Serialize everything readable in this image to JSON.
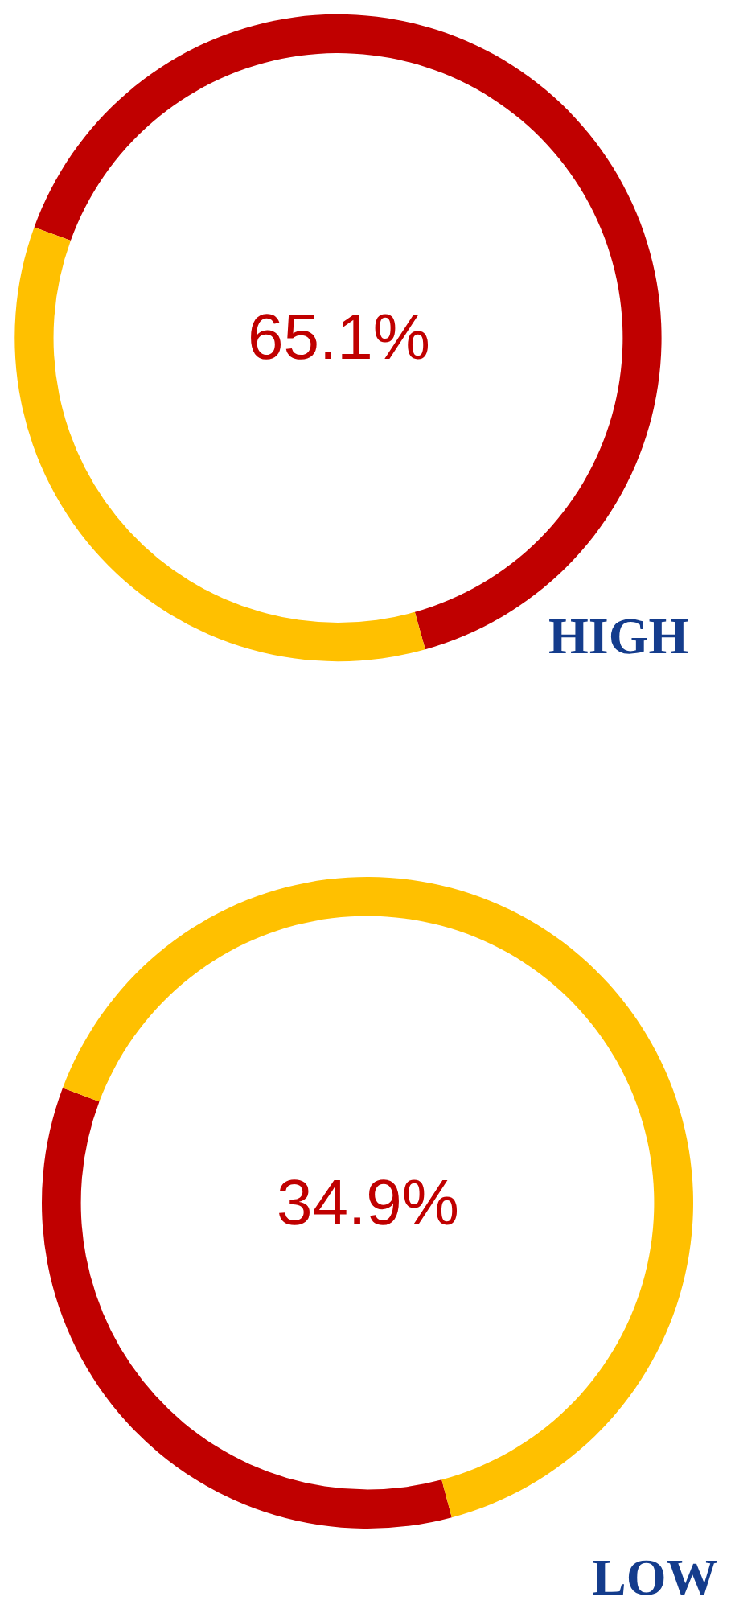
{
  "chart_data": [
    {
      "type": "donut",
      "categories": [
        null,
        null
      ],
      "values": [
        65.1,
        34.9
      ],
      "colors": [
        "#c00000",
        "#ffc000"
      ],
      "annotations": [
        "65.1%",
        "HIGH"
      ]
    },
    {
      "type": "donut",
      "categories": [
        null,
        null
      ],
      "values": [
        34.9,
        65.1
      ],
      "colors": [
        "#c00000",
        "#ffc000"
      ],
      "annotations": [
        "34.9%",
        "LOW"
      ]
    }
  ]
}
